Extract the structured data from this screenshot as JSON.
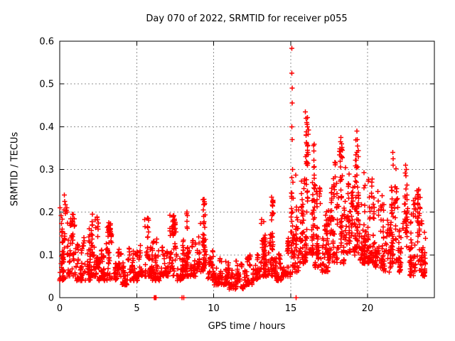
{
  "chart_data": {
    "type": "scatter",
    "title": "Day 070 of 2022, SRMTID for receiver p055",
    "xlabel": "GPS time / hours",
    "ylabel": "SRMTID / TECUs",
    "xlim": [
      0,
      24.33
    ],
    "ylim": [
      0,
      0.6
    ],
    "xticks": [
      0,
      5,
      10,
      15,
      20
    ],
    "xtick_labels": [
      "0",
      "5",
      "10",
      "15",
      "20"
    ],
    "yticks": [
      0,
      0.1,
      0.2,
      0.3,
      0.4,
      0.5,
      0.6
    ],
    "ytick_labels": [
      "0",
      "0.1",
      "0.2",
      "0.3",
      "0.4",
      "0.5",
      "0.6"
    ],
    "grid": true,
    "legend": "none",
    "marker": "plus",
    "marker_color": "#ff0000",
    "border_color": "#000000",
    "grid_color": "#909090",
    "background_color": "#ffffff",
    "max_point": [
      15.08,
      0.583
    ],
    "points_spec": {
      "seed": 7,
      "bins": [
        [
          0.0,
          0.5,
          50,
          0.04,
          0.22
        ],
        [
          0.5,
          1.0,
          48,
          0.05,
          0.2
        ],
        [
          1.0,
          1.5,
          45,
          0.04,
          0.13
        ],
        [
          1.5,
          2.0,
          45,
          0.04,
          0.17
        ],
        [
          2.0,
          2.5,
          48,
          0.05,
          0.2
        ],
        [
          2.5,
          3.0,
          45,
          0.04,
          0.12
        ],
        [
          3.0,
          3.5,
          45,
          0.04,
          0.18
        ],
        [
          3.5,
          4.0,
          42,
          0.04,
          0.12
        ],
        [
          4.0,
          4.5,
          42,
          0.03,
          0.11
        ],
        [
          4.5,
          5.0,
          45,
          0.04,
          0.13
        ],
        [
          5.0,
          5.5,
          45,
          0.05,
          0.13
        ],
        [
          5.5,
          6.0,
          45,
          0.05,
          0.19
        ],
        [
          6.0,
          6.5,
          45,
          0.04,
          0.15
        ],
        [
          6.5,
          7.0,
          42,
          0.05,
          0.13
        ],
        [
          7.0,
          7.5,
          48,
          0.05,
          0.2
        ],
        [
          7.5,
          8.0,
          45,
          0.04,
          0.16
        ],
        [
          8.0,
          8.5,
          48,
          0.05,
          0.21
        ],
        [
          8.5,
          9.0,
          42,
          0.05,
          0.15
        ],
        [
          9.0,
          9.5,
          48,
          0.06,
          0.235
        ],
        [
          9.5,
          10.0,
          40,
          0.04,
          0.12
        ],
        [
          10.0,
          10.5,
          40,
          0.03,
          0.1
        ],
        [
          10.5,
          11.0,
          42,
          0.03,
          0.12
        ],
        [
          11.0,
          11.5,
          40,
          0.02,
          0.09
        ],
        [
          11.5,
          12.0,
          40,
          0.02,
          0.08
        ],
        [
          12.0,
          12.5,
          42,
          0.03,
          0.1
        ],
        [
          12.5,
          13.0,
          42,
          0.04,
          0.12
        ],
        [
          13.0,
          13.5,
          45,
          0.05,
          0.19
        ],
        [
          13.5,
          14.0,
          48,
          0.05,
          0.23
        ],
        [
          14.0,
          14.5,
          42,
          0.04,
          0.13
        ],
        [
          14.5,
          15.0,
          45,
          0.05,
          0.15
        ],
        [
          15.0,
          15.5,
          55,
          0.06,
          0.3
        ],
        [
          15.5,
          16.0,
          50,
          0.08,
          0.33
        ],
        [
          16.0,
          16.5,
          52,
          0.1,
          0.4
        ],
        [
          16.5,
          17.0,
          48,
          0.07,
          0.3
        ],
        [
          17.0,
          17.5,
          48,
          0.06,
          0.25
        ],
        [
          17.5,
          18.0,
          50,
          0.08,
          0.33
        ],
        [
          18.0,
          18.5,
          52,
          0.08,
          0.37
        ],
        [
          18.5,
          19.0,
          50,
          0.1,
          0.31
        ],
        [
          19.0,
          19.5,
          52,
          0.1,
          0.37
        ],
        [
          19.5,
          20.0,
          50,
          0.08,
          0.3
        ],
        [
          20.0,
          20.5,
          48,
          0.08,
          0.28
        ],
        [
          20.5,
          21.0,
          45,
          0.07,
          0.25
        ],
        [
          21.0,
          21.5,
          42,
          0.06,
          0.22
        ],
        [
          21.5,
          22.0,
          46,
          0.08,
          0.32
        ],
        [
          22.0,
          22.5,
          44,
          0.06,
          0.24
        ],
        [
          22.5,
          23.0,
          45,
          0.05,
          0.24
        ],
        [
          23.0,
          23.5,
          48,
          0.06,
          0.24
        ],
        [
          23.5,
          23.75,
          28,
          0.05,
          0.16
        ]
      ],
      "columns": [
        [
          0.15,
          0.06,
          0.21,
          12
        ],
        [
          2.1,
          0.08,
          0.195,
          14
        ],
        [
          3.15,
          0.07,
          0.18,
          8
        ],
        [
          5.75,
          0.08,
          0.19,
          8
        ],
        [
          7.45,
          0.08,
          0.2,
          10
        ],
        [
          8.25,
          0.07,
          0.2,
          8
        ],
        [
          9.4,
          0.1,
          0.235,
          16
        ],
        [
          13.2,
          0.07,
          0.19,
          10
        ],
        [
          13.8,
          0.08,
          0.23,
          14
        ],
        [
          15.1,
          0.1,
          0.3,
          12
        ],
        [
          15.75,
          0.12,
          0.3,
          10
        ],
        [
          16.05,
          0.22,
          0.43,
          18
        ],
        [
          16.5,
          0.15,
          0.3,
          10
        ],
        [
          17.3,
          0.1,
          0.25,
          8
        ],
        [
          17.8,
          0.12,
          0.3,
          10
        ],
        [
          18.3,
          0.15,
          0.37,
          14
        ],
        [
          19.35,
          0.15,
          0.39,
          18
        ],
        [
          19.8,
          0.12,
          0.3,
          12
        ],
        [
          20.4,
          0.1,
          0.22,
          10
        ],
        [
          21.6,
          0.12,
          0.33,
          12
        ],
        [
          22.5,
          0.1,
          0.3,
          10
        ],
        [
          23.3,
          0.08,
          0.27,
          12
        ]
      ],
      "outliers": [
        [
          0.3,
          0.24
        ],
        [
          0.32,
          0.225
        ],
        [
          0.28,
          0.205
        ],
        [
          9.38,
          0.23
        ],
        [
          9.42,
          0.22
        ],
        [
          13.75,
          0.235
        ],
        [
          13.82,
          0.225
        ],
        [
          15.08,
          0.583
        ],
        [
          15.08,
          0.525
        ],
        [
          15.09,
          0.49
        ],
        [
          15.1,
          0.455
        ],
        [
          15.08,
          0.4
        ],
        [
          15.1,
          0.37
        ],
        [
          15.12,
          0.3
        ],
        [
          15.14,
          0.27
        ],
        [
          15.06,
          0.245
        ],
        [
          15.95,
          0.435
        ],
        [
          16.0,
          0.42
        ],
        [
          16.05,
          0.41
        ],
        [
          16.1,
          0.4
        ],
        [
          16.0,
          0.38
        ],
        [
          16.05,
          0.36
        ],
        [
          16.1,
          0.345
        ],
        [
          15.98,
          0.33
        ],
        [
          16.08,
          0.31
        ],
        [
          18.25,
          0.375
        ],
        [
          18.3,
          0.36
        ],
        [
          18.35,
          0.345
        ],
        [
          18.3,
          0.33
        ],
        [
          19.3,
          0.39
        ],
        [
          19.32,
          0.37
        ],
        [
          19.35,
          0.355
        ],
        [
          19.3,
          0.34
        ],
        [
          19.38,
          0.33
        ],
        [
          21.62,
          0.34
        ],
        [
          21.65,
          0.325
        ],
        [
          21.66,
          0.31
        ],
        [
          22.45,
          0.31
        ],
        [
          22.5,
          0.3
        ],
        [
          22.48,
          0.285
        ],
        [
          23.2,
          0.25
        ],
        [
          23.25,
          0.24
        ]
      ],
      "zero_points": [
        [
          6.13,
          0
        ],
        [
          6.16,
          0
        ],
        [
          6.19,
          0
        ],
        [
          6.22,
          0
        ],
        [
          6.25,
          0
        ],
        [
          7.94,
          0
        ],
        [
          8.06,
          0
        ],
        [
          15.35,
          0
        ]
      ]
    }
  }
}
